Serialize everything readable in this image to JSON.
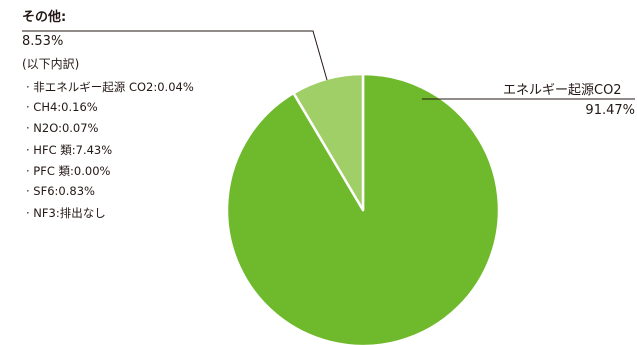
{
  "chart_data": {
    "type": "pie",
    "title": "",
    "slices": [
      {
        "label": "エネルギー起源CO2",
        "value": 91.47,
        "display_value": "91.47%",
        "color": "#6fba2c"
      },
      {
        "label": "その他:",
        "value": 8.53,
        "display_value": "8.53%",
        "color": "#a0cf67"
      }
    ],
    "other_breakdown": {
      "heading": "(以下内訳)",
      "items": [
        "· 非エネルギー起源 CO2:0.04%",
        "· CH4:0.16%",
        "· N2O:0.07%",
        "· HFC 類:7.43%",
        "· PFC 類:0.00%",
        "· SF6:0.83%",
        "· NF3:排出なし"
      ]
    },
    "slice_border_color": "#ffffff",
    "leader_line_color": "#231815"
  }
}
